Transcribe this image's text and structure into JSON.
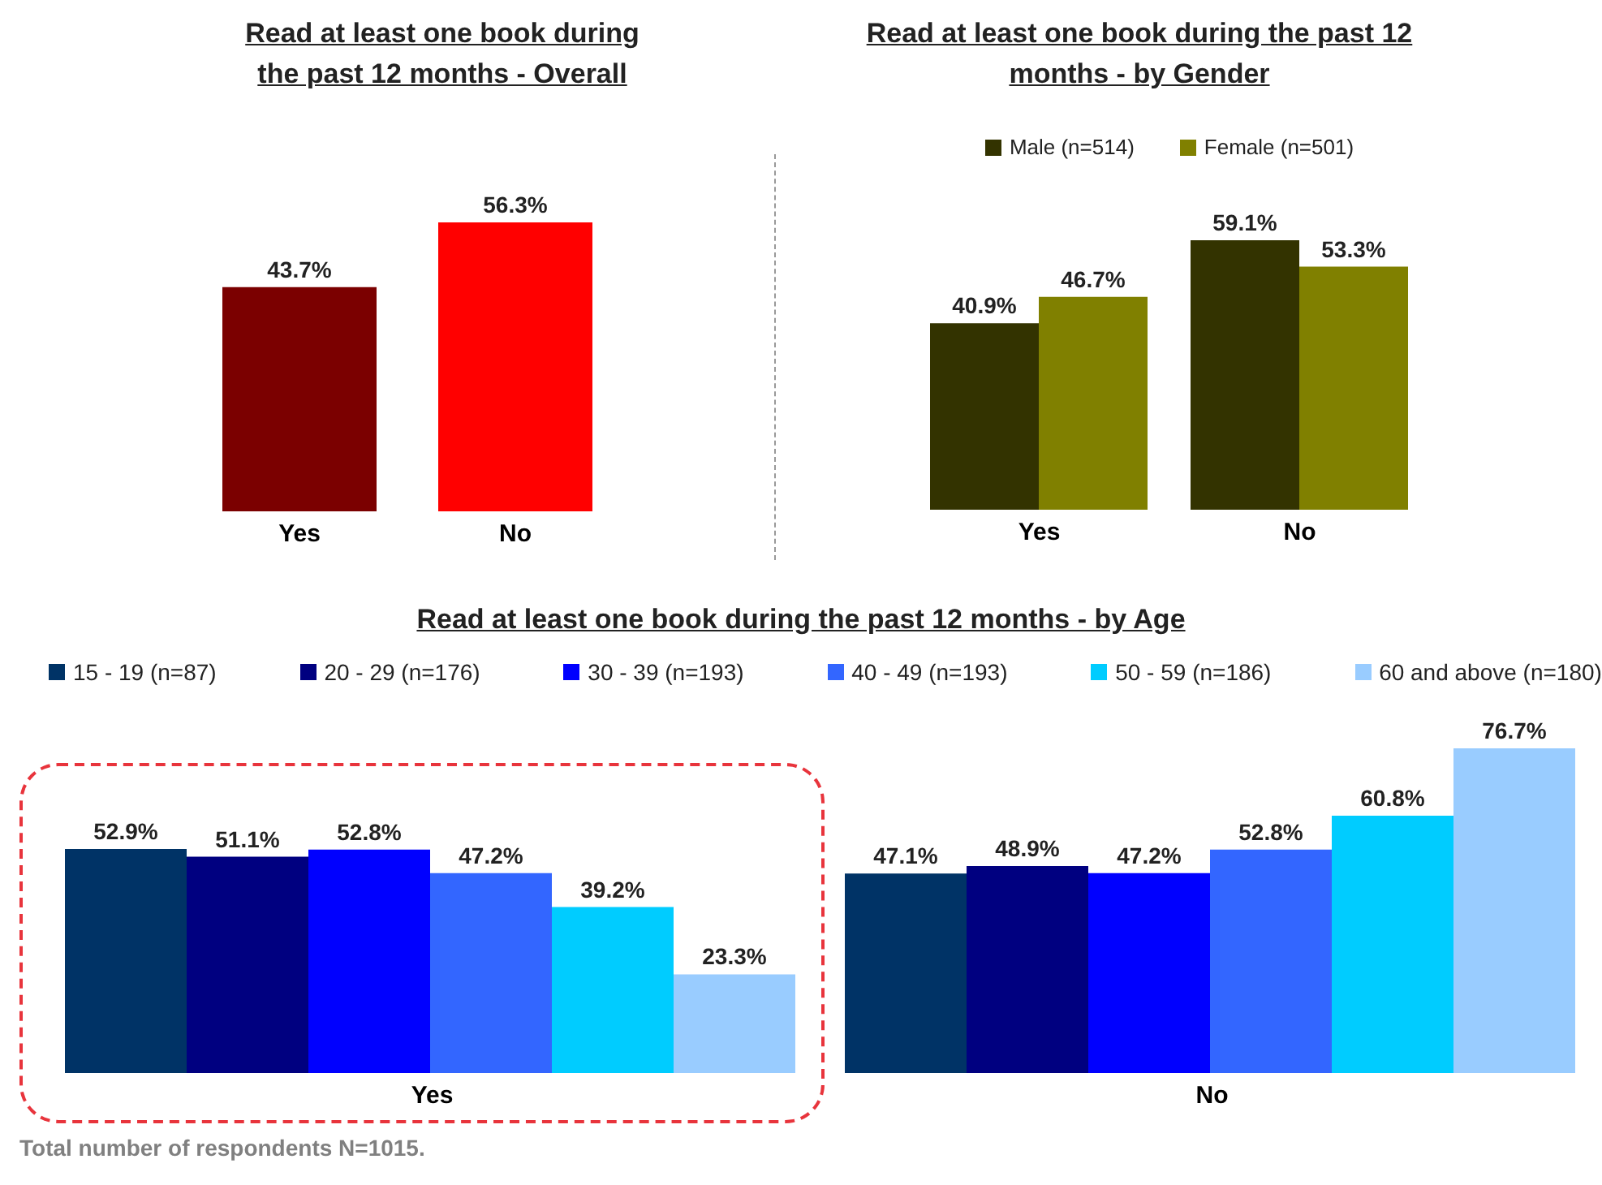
{
  "chart_data": [
    {
      "type": "bar",
      "title": "Read at least one book during the past 12 months - Overall",
      "categories": [
        "Yes",
        "No"
      ],
      "values": [
        43.7,
        56.3
      ],
      "colors": [
        "#7b0000",
        "#ff0000"
      ],
      "value_labels": [
        "43.7%",
        "56.3%"
      ]
    },
    {
      "type": "bar",
      "title": "Read at least one book during the past 12 months - by Gender",
      "categories": [
        "Yes",
        "No"
      ],
      "series": [
        {
          "name": "Male (n=514)",
          "color": "#333300",
          "values": [
            40.9,
            59.1
          ],
          "value_labels": [
            "40.9%",
            "59.1%"
          ]
        },
        {
          "name": "Female (n=501)",
          "color": "#808000",
          "values": [
            46.7,
            53.3
          ],
          "value_labels": [
            "46.7%",
            "53.3%"
          ]
        }
      ],
      "legend": "top"
    },
    {
      "type": "bar",
      "title": "Read at least one book during the past 12 months - by Age",
      "categories": [
        "Yes",
        "No"
      ],
      "series": [
        {
          "name": "15 - 19 (n=87)",
          "color": "#003366",
          "values": [
            52.9,
            47.1
          ],
          "value_labels": [
            "52.9%",
            "47.1%"
          ]
        },
        {
          "name": "20 - 29 (n=176)",
          "color": "#000080",
          "values": [
            51.1,
            48.9
          ],
          "value_labels": [
            "51.1%",
            "48.9%"
          ]
        },
        {
          "name": "30 - 39 (n=193)",
          "color": "#0000ff",
          "values": [
            52.8,
            47.2
          ],
          "value_labels": [
            "52.8%",
            "47.2%"
          ]
        },
        {
          "name": "40 - 49 (n=193)",
          "color": "#3366ff",
          "values": [
            47.2,
            52.8
          ],
          "value_labels": [
            "47.2%",
            "52.8%"
          ]
        },
        {
          "name": "50 - 59 (n=186)",
          "color": "#00ccff",
          "values": [
            39.2,
            60.8
          ],
          "value_labels": [
            "39.2%",
            "60.8%"
          ]
        },
        {
          "name": "60 and above (n=180)",
          "color": "#99ccff",
          "values": [
            23.3,
            76.7
          ],
          "value_labels": [
            "23.3%",
            "76.7%"
          ]
        }
      ],
      "legend": "top",
      "annotations": [
        "Total number of respondents N=1015."
      ]
    }
  ]
}
